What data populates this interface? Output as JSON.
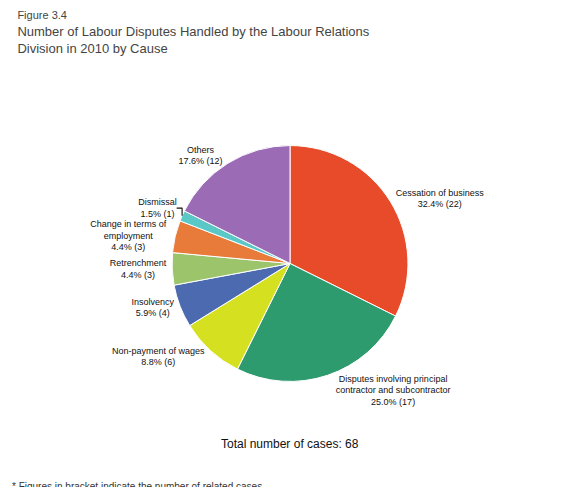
{
  "chart_data": {
    "type": "pie",
    "subtitle": "Figure 3.4",
    "title": "Number of Labour Disputes Handled by the Labour Relations\nDivision in 2010 by Cause",
    "categories": [
      "Cessation of business\n32.4% (22)",
      "Disputes involving principal\ncontractor and subcontractor\n25.0% (17)",
      "Non-payment of wages\n8.8% (6)",
      "Insolvency\n5.9% (4)",
      "Retrenchment\n4.4% (3)",
      "Change in terms of\nemployment\n4.4% (3)",
      "Dismissal\n1.5% (1)",
      "Others\n17.6% (12)"
    ],
    "values": [
      22,
      17,
      6,
      4,
      3,
      3,
      1,
      12
    ],
    "colors": [
      "#E84B2A",
      "#2E9B6E",
      "#D4E020",
      "#4B6AAF",
      "#9CC46A",
      "#E87A3A",
      "#5BC8C8",
      "#9B6BB5"
    ],
    "annotations": [
      "Total number of cases: 68",
      "* Figures in bracket indicate the number of related cases"
    ]
  }
}
